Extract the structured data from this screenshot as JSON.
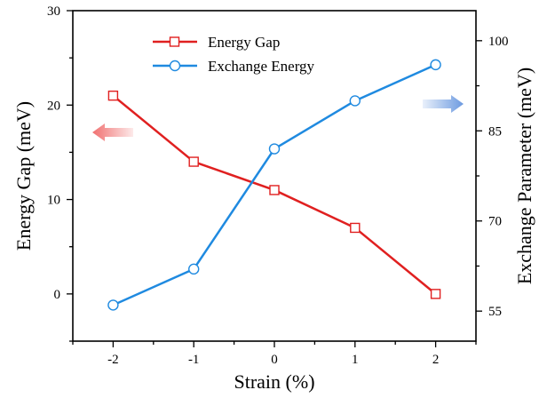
{
  "chart_data": {
    "type": "line",
    "title": "",
    "x": [
      -2,
      -1,
      0,
      1,
      2
    ],
    "x_ticks": [
      "-2",
      "-1",
      "0",
      "1",
      "2"
    ],
    "xlabel": "Strain (%)",
    "xlim": [
      -2.5,
      2.5
    ],
    "ylabel": "Energy Gap (meV)",
    "ylim": [
      -5,
      30
    ],
    "y_ticks": [
      "0",
      "10",
      "20",
      "30"
    ],
    "y2label": "Exchange Parameter (meV)",
    "y2lim": [
      50,
      105
    ],
    "y2_ticks": [
      "55",
      "70",
      "85",
      "100"
    ],
    "grid": false,
    "legend_position": "top-center",
    "series": [
      {
        "name": "Energy Gap",
        "axis": "left",
        "color": "#e02020",
        "marker": "square",
        "values": [
          21,
          14,
          11,
          7,
          0
        ]
      },
      {
        "name": "Exchange Energy",
        "axis": "right",
        "color": "#1f8ae0",
        "marker": "circle",
        "values": [
          56,
          62,
          82,
          90,
          96
        ]
      }
    ],
    "annotations": [
      {
        "name": "left-axis-arrow",
        "direction": "left",
        "color": "#f07070",
        "points_to": "left axis"
      },
      {
        "name": "right-axis-arrow",
        "direction": "right",
        "color": "#6c9ae0",
        "points_to": "right axis"
      }
    ]
  }
}
